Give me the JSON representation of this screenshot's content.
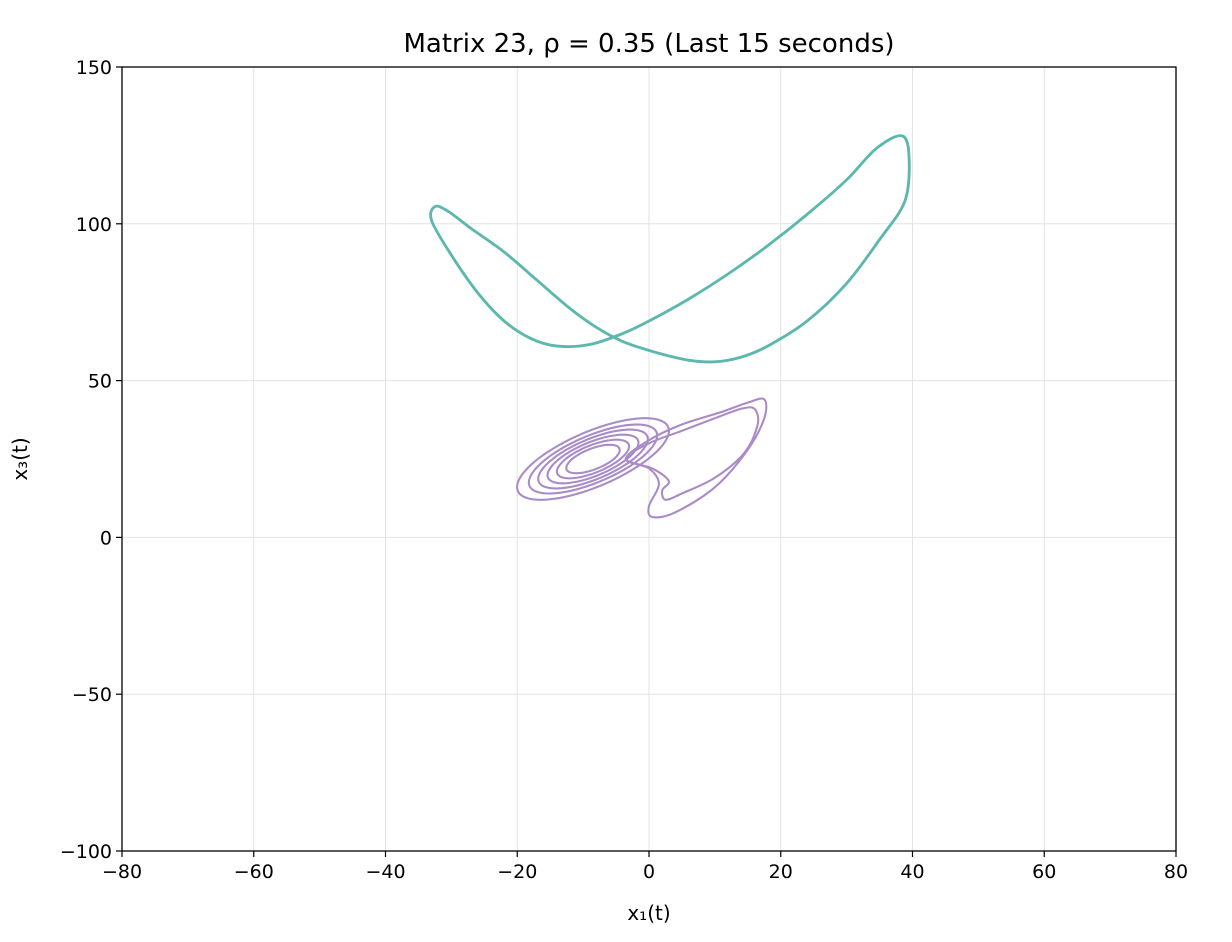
{
  "chart_data": {
    "type": "line",
    "title": "Matrix 23, ρ = 0.35 (Last 15 seconds)",
    "xlabel": "x₁(t)",
    "ylabel": "x₃(t)",
    "xlim": [
      -80,
      80
    ],
    "ylim": [
      -100,
      150
    ],
    "xticks": [
      -80,
      -60,
      -40,
      -20,
      0,
      20,
      40,
      60,
      80
    ],
    "yticks": [
      -100,
      -50,
      0,
      50,
      100,
      150
    ],
    "xtick_labels": [
      "−80",
      "−60",
      "−40",
      "−20",
      "0",
      "20",
      "40",
      "60",
      "80"
    ],
    "ytick_labels": [
      "−100",
      "−50",
      "0",
      "50",
      "100",
      "150"
    ],
    "grid": true,
    "legend": "none",
    "series": [
      {
        "color": "#5cb8ad",
        "line_width": 1.5,
        "closed": true,
        "smooth": true,
        "x": [
          -32.5,
          -30.5,
          -27,
          -22,
          -17,
          -12,
          -8,
          -4,
          1,
          6,
          10,
          14,
          18,
          24,
          30,
          35,
          38.8,
          39.5,
          38.5,
          34.5,
          30,
          24,
          18,
          12,
          6,
          0,
          -4,
          -9,
          -14,
          -18,
          -22,
          -26,
          -30,
          -33,
          -32.5
        ],
        "y": [
          105.5,
          104,
          98.5,
          91,
          82,
          73,
          67,
          62.5,
          59,
          56.5,
          56,
          57.5,
          61,
          69,
          81,
          95,
          107,
          120,
          128,
          124,
          114,
          103,
          93,
          84,
          76,
          69,
          65,
          61.5,
          61,
          63.5,
          69,
          78,
          90,
          101,
          105.5
        ]
      },
      {
        "color": "#a98bc8",
        "line_width": 1.3,
        "variant": "double-scroll",
        "spiral_loops": [
          {
            "cx": -8.5,
            "cy": 25,
            "rx": 6.8,
            "ry": 16,
            "angle": -40
          },
          {
            "cx": -8.5,
            "cy": 25,
            "rx": 5.8,
            "ry": 13.5,
            "angle": -40
          },
          {
            "cx": -8.5,
            "cy": 25,
            "rx": 5,
            "ry": 11.5,
            "angle": -40
          },
          {
            "cx": -8.5,
            "cy": 25,
            "rx": 4.2,
            "ry": 9.5,
            "angle": -40
          },
          {
            "cx": -8.5,
            "cy": 25,
            "rx": 3.4,
            "ry": 7.5,
            "angle": -40
          },
          {
            "cx": -8.5,
            "cy": 25,
            "rx": 2.6,
            "ry": 5.5,
            "angle": -40
          }
        ],
        "outer_loops": [
          {
            "x": [
              -3.5,
              0,
              5,
              10,
              14,
              16,
              16.5,
              14.5,
              10,
              5,
              2.5,
              2,
              3,
              0.5,
              -3.5
            ],
            "y": [
              25,
              30,
              34,
              38,
              41,
              41,
              36,
              27,
              19,
              14,
              12,
              15,
              18,
              22,
              25
            ]
          },
          {
            "x": [
              -3.5,
              0,
              5,
              11,
              15,
              17.5,
              17.5,
              15,
              10,
              4,
              0.5,
              0,
              1.5,
              0,
              -3.5
            ],
            "y": [
              25,
              31,
              36,
              40,
              43,
              44,
              38,
              28,
              16,
              8,
              6.5,
              10,
              17,
              22,
              25
            ]
          }
        ]
      }
    ]
  }
}
